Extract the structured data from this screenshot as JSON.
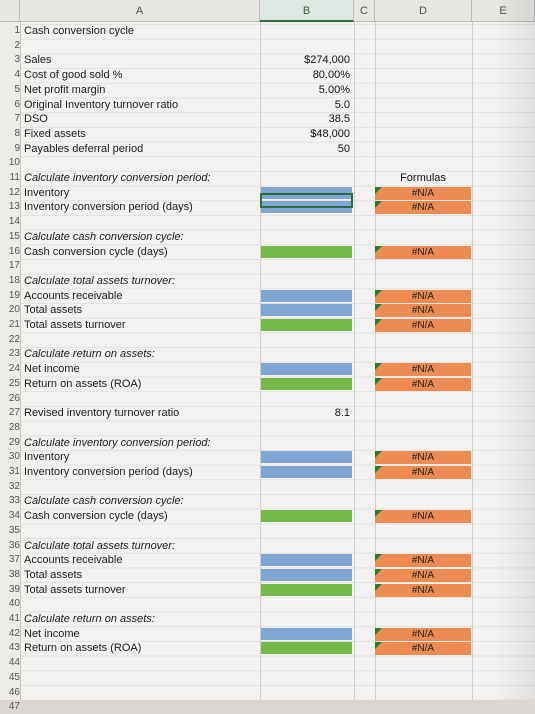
{
  "columns": [
    "A",
    "B",
    "C",
    "D",
    "E"
  ],
  "rows": [
    {
      "n": "1",
      "a": "Cash conversion cycle",
      "italic": false
    },
    {
      "n": "2",
      "a": "",
      "italic": false
    },
    {
      "n": "3",
      "a": "Sales",
      "italic": false,
      "b": "$274,000"
    },
    {
      "n": "4",
      "a": "Cost of good sold %",
      "italic": false,
      "b": "80.00%"
    },
    {
      "n": "5",
      "a": "Net profit margin",
      "italic": false,
      "b": "5.00%"
    },
    {
      "n": "6",
      "a": "Original Inventory turnover ratio",
      "italic": false,
      "b": "5.0"
    },
    {
      "n": "7",
      "a": "DSO",
      "italic": false,
      "b": "38.5"
    },
    {
      "n": "8",
      "a": "Fixed assets",
      "italic": false,
      "b": "$48,000"
    },
    {
      "n": "9",
      "a": "Payables deferral period",
      "italic": false,
      "b": "50"
    },
    {
      "n": "10",
      "a": "",
      "italic": false
    },
    {
      "n": "11",
      "a": "Calculate inventory conversion period:",
      "italic": true,
      "d": "Formulas"
    },
    {
      "n": "12",
      "a": "Inventory",
      "italic": false,
      "fill": "blue",
      "d": "#N/A"
    },
    {
      "n": "13",
      "a": "Inventory conversion period (days)",
      "italic": false,
      "fill": "blue",
      "d": "#N/A"
    },
    {
      "n": "14",
      "a": "",
      "italic": false
    },
    {
      "n": "15",
      "a": "Calculate cash conversion cycle:",
      "italic": true
    },
    {
      "n": "16",
      "a": "Cash conversion cycle (days)",
      "italic": false,
      "fill": "green",
      "d": "#N/A"
    },
    {
      "n": "17",
      "a": "",
      "italic": false
    },
    {
      "n": "18",
      "a": "Calculate total assets turnover:",
      "italic": true
    },
    {
      "n": "19",
      "a": "Accounts receivable",
      "italic": false,
      "fill": "blue",
      "d": "#N/A"
    },
    {
      "n": "20",
      "a": "Total assets",
      "italic": false,
      "fill": "blue",
      "d": "#N/A"
    },
    {
      "n": "21",
      "a": "Total assets turnover",
      "italic": false,
      "fill": "green",
      "d": "#N/A"
    },
    {
      "n": "22",
      "a": "",
      "italic": false
    },
    {
      "n": "23",
      "a": "Calculate return on assets:",
      "italic": true
    },
    {
      "n": "24",
      "a": "Net income",
      "italic": false,
      "fill": "blue",
      "d": "#N/A"
    },
    {
      "n": "25",
      "a": "Return on assets (ROA)",
      "italic": false,
      "fill": "green",
      "d": "#N/A"
    },
    {
      "n": "26",
      "a": "",
      "italic": false
    },
    {
      "n": "27",
      "a": "Revised inventory turnover ratio",
      "italic": false,
      "b": "8.1"
    },
    {
      "n": "28",
      "a": "",
      "italic": false
    },
    {
      "n": "29",
      "a": "Calculate inventory conversion period:",
      "italic": true
    },
    {
      "n": "30",
      "a": "Inventory",
      "italic": false,
      "fill": "blue",
      "d": "#N/A"
    },
    {
      "n": "31",
      "a": "Inventory conversion period (days)",
      "italic": false,
      "fill": "blue",
      "d": "#N/A"
    },
    {
      "n": "32",
      "a": "",
      "italic": false
    },
    {
      "n": "33",
      "a": "Calculate cash conversion cycle:",
      "italic": true
    },
    {
      "n": "34",
      "a": "Cash conversion cycle (days)",
      "italic": false,
      "fill": "green",
      "d": "#N/A"
    },
    {
      "n": "35",
      "a": "",
      "italic": false
    },
    {
      "n": "36",
      "a": "Calculate total assets turnover:",
      "italic": true
    },
    {
      "n": "37",
      "a": "Accounts receivable",
      "italic": false,
      "fill": "blue",
      "d": "#N/A"
    },
    {
      "n": "38",
      "a": "Total assets",
      "italic": false,
      "fill": "blue",
      "d": "#N/A"
    },
    {
      "n": "39",
      "a": "Total assets turnover",
      "italic": false,
      "fill": "green",
      "d": "#N/A"
    },
    {
      "n": "40",
      "a": "",
      "italic": false
    },
    {
      "n": "41",
      "a": "Calculate return on assets:",
      "italic": true
    },
    {
      "n": "42",
      "a": "Net income",
      "italic": false,
      "fill": "blue",
      "d": "#N/A"
    },
    {
      "n": "43",
      "a": "Return on assets (ROA)",
      "italic": false,
      "fill": "green",
      "d": "#N/A"
    },
    {
      "n": "44",
      "a": "",
      "italic": false
    },
    {
      "n": "45",
      "a": "",
      "italic": false
    },
    {
      "n": "46",
      "a": "",
      "italic": false
    },
    {
      "n": "47",
      "a": "",
      "italic": false
    }
  ],
  "colors": {
    "blue_fill": "#7fa6d3",
    "green_fill": "#74b84a",
    "error_fill": "#ec8c52",
    "selection": "#2d6b3e"
  }
}
